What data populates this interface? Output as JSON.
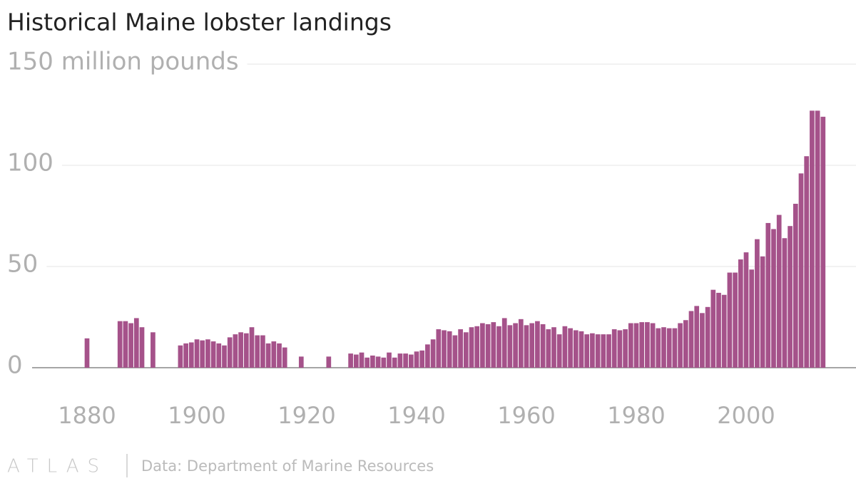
{
  "chart_data": {
    "type": "bar",
    "title": "Historical Maine lobster landings",
    "x": [
      1880,
      1886,
      1887,
      1888,
      1889,
      1890,
      1892,
      1897,
      1898,
      1899,
      1900,
      1901,
      1902,
      1903,
      1904,
      1905,
      1906,
      1907,
      1908,
      1909,
      1910,
      1911,
      1912,
      1913,
      1914,
      1915,
      1916,
      1919,
      1924,
      1928,
      1929,
      1930,
      1931,
      1932,
      1933,
      1934,
      1935,
      1936,
      1937,
      1938,
      1939,
      1940,
      1941,
      1942,
      1943,
      1944,
      1945,
      1946,
      1947,
      1948,
      1949,
      1950,
      1951,
      1952,
      1953,
      1954,
      1955,
      1956,
      1957,
      1958,
      1959,
      1960,
      1961,
      1962,
      1963,
      1964,
      1965,
      1966,
      1967,
      1968,
      1969,
      1970,
      1971,
      1972,
      1973,
      1974,
      1975,
      1976,
      1977,
      1978,
      1979,
      1980,
      1981,
      1982,
      1983,
      1984,
      1985,
      1986,
      1987,
      1988,
      1989,
      1990,
      1991,
      1992,
      1993,
      1994,
      1995,
      1996,
      1997,
      1998,
      1999,
      2000,
      2001,
      2002,
      2003,
      2004,
      2005,
      2006,
      2007,
      2008,
      2009,
      2010,
      2011,
      2012,
      2013,
      2014
    ],
    "values": [
      14.5,
      23,
      23,
      22,
      24.5,
      20,
      17.5,
      11,
      12,
      12.5,
      14,
      13.5,
      14,
      13,
      12,
      11,
      15,
      16.5,
      17.5,
      17,
      20,
      16,
      16,
      12,
      13,
      12,
      10,
      5.5,
      5.5,
      7,
      6.5,
      7.5,
      5,
      6,
      5.5,
      5,
      7.5,
      5,
      7,
      7,
      6.5,
      8,
      8.5,
      11.5,
      14,
      19,
      18.5,
      18,
      16,
      19,
      17.5,
      20,
      20.5,
      22,
      21.5,
      22.5,
      20.5,
      24.5,
      21,
      22,
      24,
      21,
      22,
      23,
      21.5,
      19,
      20,
      16.5,
      20.5,
      19.5,
      18.5,
      18,
      16.5,
      17,
      16.5,
      16.5,
      16.5,
      19,
      18.5,
      19,
      22,
      22,
      22.5,
      22.5,
      22,
      19.5,
      20,
      19.5,
      19.5,
      22,
      23.5,
      28,
      30.5,
      27,
      30,
      38.5,
      37,
      36,
      47,
      47,
      53.5,
      57,
      48.5,
      63.5,
      55,
      71.5,
      68.5,
      75.5,
      64,
      70,
      81,
      96,
      104.5,
      127,
      127,
      124
    ],
    "color": "#a5528a",
    "xlim": [
      1870,
      2020
    ],
    "xticks": [
      1880,
      1900,
      1920,
      1940,
      1960,
      1980,
      2000
    ],
    "ylim": [
      0,
      150
    ],
    "yticks": [
      0,
      50,
      100,
      {
        "value": 150,
        "label": "150 million pounds"
      }
    ],
    "grid": true
  },
  "footer": {
    "logo": "ATLAS",
    "source": "Data: Department of Marine Resources"
  }
}
